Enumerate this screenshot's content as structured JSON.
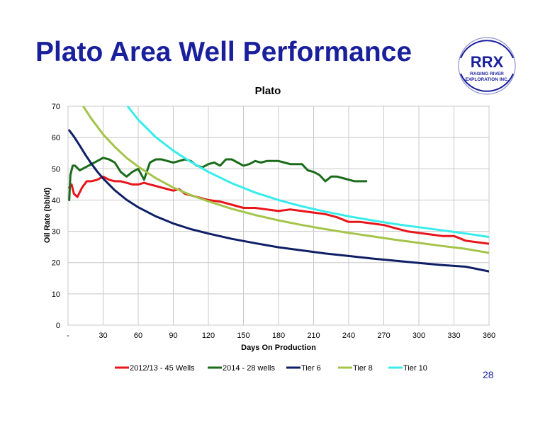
{
  "slide": {
    "title": "Plato Area Well Performance",
    "page_number": "28"
  },
  "logo": {
    "main": "RRX",
    "line1": "RAGING RIVER",
    "line2": "EXPLORATION INC.",
    "color": "#1a1f9c"
  },
  "chart_data": {
    "type": "line",
    "title": "Plato",
    "xlabel": "Days On Production",
    "ylabel": "Oil Rate (bbl/d)",
    "xlim": [
      0,
      360
    ],
    "ylim": [
      0,
      70
    ],
    "x_ticks": [
      "-",
      "30",
      "60",
      "90",
      "120",
      "150",
      "180",
      "210",
      "240",
      "270",
      "300",
      "330",
      "360"
    ],
    "y_ticks": [
      "0",
      "10",
      "20",
      "30",
      "40",
      "50",
      "60",
      "70"
    ],
    "grid": true,
    "legend": "bottom",
    "series": [
      {
        "name": "2012/13 - 45 Wells",
        "color": "#e8151b",
        "x": [
          1,
          3,
          5,
          8,
          12,
          16,
          20,
          25,
          30,
          35,
          40,
          45,
          50,
          55,
          60,
          65,
          70,
          75,
          80,
          85,
          90,
          95,
          100,
          105,
          110,
          115,
          120,
          130,
          140,
          150,
          160,
          170,
          180,
          190,
          200,
          210,
          220,
          230,
          240,
          250,
          260,
          270,
          280,
          290,
          300,
          310,
          320,
          330,
          340,
          350,
          360
        ],
        "y": [
          44,
          45,
          42,
          41,
          44,
          46,
          46,
          46.5,
          47.5,
          46.5,
          46,
          46,
          45.5,
          45,
          45,
          45.5,
          45,
          44.5,
          44,
          43.5,
          43,
          43.5,
          42,
          41.5,
          41,
          40.5,
          40,
          39.5,
          38.5,
          37.5,
          37.5,
          37,
          36.5,
          37,
          36.5,
          36,
          35.5,
          34.5,
          33,
          33,
          32.5,
          32,
          31,
          30,
          29.5,
          29,
          28.5,
          28.5,
          27,
          26.5,
          26
        ]
      },
      {
        "name": "2014 - 28 wells",
        "color": "#1a6b1a",
        "x": [
          1,
          2,
          4,
          6,
          10,
          15,
          20,
          25,
          30,
          35,
          40,
          45,
          50,
          55,
          60,
          65,
          70,
          75,
          80,
          85,
          90,
          95,
          100,
          105,
          110,
          115,
          120,
          125,
          130,
          135,
          140,
          145,
          150,
          155,
          160,
          165,
          170,
          175,
          180,
          185,
          190,
          195,
          200,
          205,
          210,
          215,
          220,
          225,
          230,
          235,
          240,
          245,
          250,
          255
        ],
        "y": [
          40,
          48,
          51,
          51,
          49.5,
          50.5,
          51.5,
          52.5,
          53.5,
          53,
          52,
          49,
          47.5,
          49,
          50,
          46.5,
          52,
          53,
          53,
          52.5,
          52,
          52.5,
          53,
          52.5,
          51,
          50.5,
          51.5,
          52,
          51,
          53,
          53,
          52,
          51,
          51.5,
          52.5,
          52,
          52.5,
          52.5,
          52.5,
          52,
          51.5,
          51.5,
          51.5,
          49.5,
          49,
          48,
          46,
          47.5,
          47.5,
          47,
          46.5,
          46,
          46,
          46
        ]
      },
      {
        "name": "Tier 6",
        "color": "#0f1f66",
        "x": [
          1,
          5,
          10,
          15,
          20,
          25,
          30,
          40,
          50,
          60,
          75,
          90,
          105,
          120,
          140,
          160,
          180,
          200,
          220,
          240,
          260,
          280,
          300,
          320,
          340,
          360
        ],
        "y": [
          62.3,
          60.3,
          57.4,
          54.4,
          51.6,
          49.1,
          46.9,
          43.1,
          40.1,
          37.7,
          34.8,
          32.5,
          30.7,
          29.3,
          27.6,
          26.2,
          24.9,
          23.9,
          22.9,
          22.1,
          21.3,
          20.6,
          19.9,
          19.2,
          18.7,
          17.2
        ]
      },
      {
        "name": "Tier 8",
        "color": "#a4c44a",
        "x": [
          13,
          20,
          30,
          40,
          50,
          60,
          75,
          90,
          105,
          120,
          140,
          160,
          180,
          200,
          220,
          240,
          260,
          280,
          300,
          320,
          340,
          360
        ],
        "y": [
          70,
          66,
          61,
          57,
          53.5,
          50.7,
          47,
          44,
          41.6,
          39.6,
          37.2,
          35.2,
          33.5,
          32,
          30.7,
          29.5,
          28.4,
          27.3,
          26.3,
          25.3,
          24.4,
          23.1
        ]
      },
      {
        "name": "Tier 10",
        "color": "#38ecec",
        "x": [
          51,
          60,
          75,
          90,
          105,
          120,
          140,
          160,
          180,
          200,
          220,
          240,
          260,
          280,
          300,
          320,
          340,
          360
        ],
        "y": [
          70,
          65.7,
          60.1,
          55.8,
          52.2,
          49,
          45.4,
          42.4,
          40,
          38,
          36.3,
          34.8,
          33.5,
          32.3,
          31.3,
          30.3,
          29.3,
          28.2
        ]
      }
    ]
  }
}
